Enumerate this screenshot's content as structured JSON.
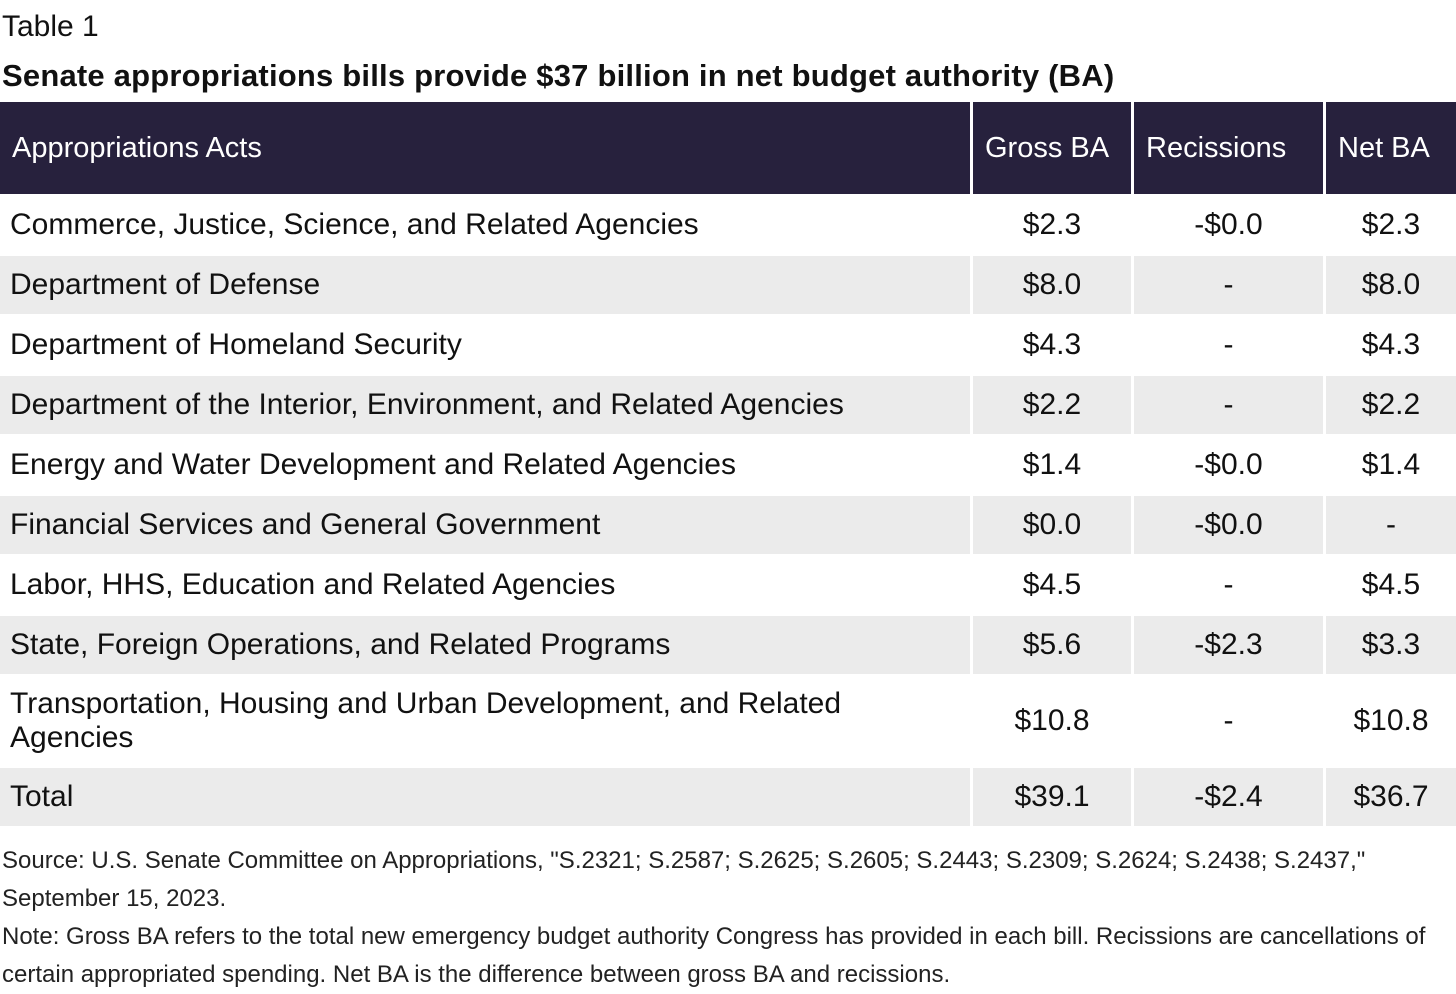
{
  "table_label": "Table 1",
  "title": "Senate appropriations bills provide $37 billion in net budget authority (BA)",
  "header_color": "#27213d",
  "columns": [
    "Appropriations Acts",
    "Gross BA",
    "Recissions",
    "Net BA"
  ],
  "rows": [
    {
      "act": "Commerce, Justice, Science, and Related Agencies",
      "gross": "$2.3",
      "recissions": "-$0.0",
      "net": "$2.3"
    },
    {
      "act": "Department of Defense",
      "gross": "$8.0",
      "recissions": "-",
      "net": "$8.0"
    },
    {
      "act": "Department of Homeland Security",
      "gross": "$4.3",
      "recissions": "-",
      "net": "$4.3"
    },
    {
      "act": "Department of the Interior, Environment, and Related Agencies",
      "gross": "$2.2",
      "recissions": "-",
      "net": "$2.2"
    },
    {
      "act": "Energy and Water Development and Related Agencies",
      "gross": "$1.4",
      "recissions": "-$0.0",
      "net": "$1.4"
    },
    {
      "act": "Financial Services and General Government",
      "gross": "$0.0",
      "recissions": "-$0.0",
      "net": "-"
    },
    {
      "act": "Labor, HHS, Education and Related Agencies",
      "gross": "$4.5",
      "recissions": "-",
      "net": "$4.5"
    },
    {
      "act": "State, Foreign Operations, and Related Programs",
      "gross": "$5.6",
      "recissions": "-$2.3",
      "net": "$3.3"
    },
    {
      "act": "Transportation, Housing and Urban Development, and Related Agencies",
      "gross": "$10.8",
      "recissions": "-",
      "net": "$10.8"
    },
    {
      "act": "Total",
      "gross": "$39.1",
      "recissions": "-$2.4",
      "net": "$36.7"
    }
  ],
  "source": "Source: U.S. Senate Committee on Appropriations, \"S.2321; S.2587; S.2625; S.2605; S.2443; S.2309; S.2624; S.2438; S.2437,\" September 15, 2023.",
  "note": "Note: Gross BA refers to the total new emergency budget authority Congress has provided in each bill. Recissions are cancellations of certain appropriated spending. Net BA is the difference between gross BA and recissions."
}
